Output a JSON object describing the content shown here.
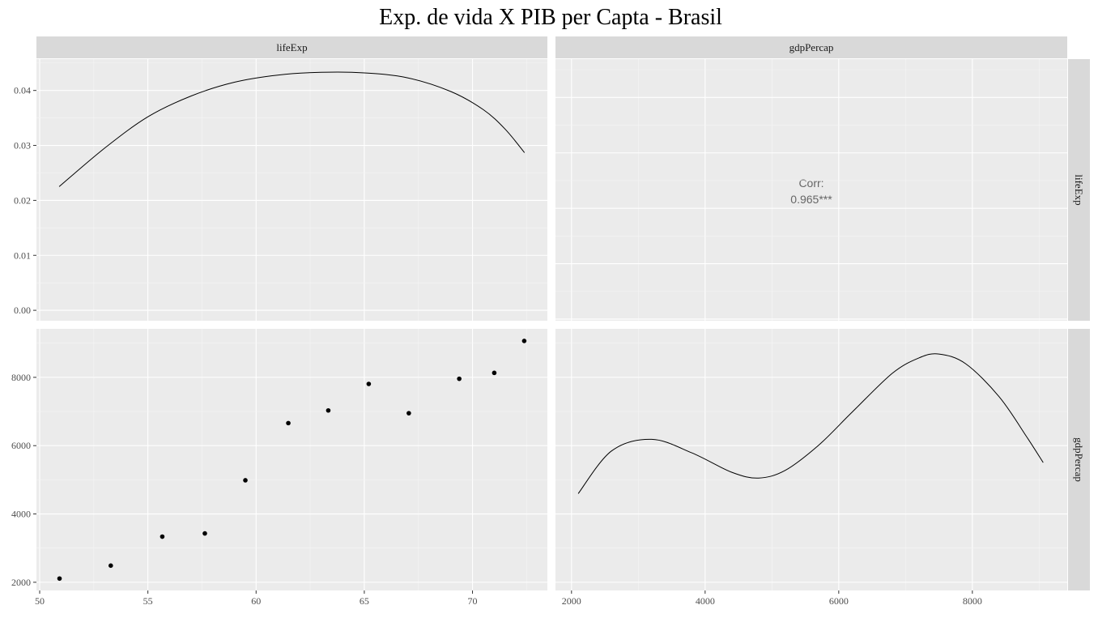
{
  "chart_data": {
    "type": "scatter-matrix",
    "title": "Exp. de vida X PIB per Capta - Brasil",
    "variables": [
      "lifeExp",
      "gdpPercap"
    ],
    "points": {
      "lifeExp": [
        50.917,
        53.285,
        55.665,
        57.632,
        59.504,
        61.489,
        63.336,
        65.205,
        67.057,
        69.388,
        71.006,
        72.39
      ],
      "gdpPercap": [
        2108.94,
        2487.37,
        3336.59,
        3429.86,
        4985.71,
        6660.12,
        7030.84,
        7807.1,
        6950.28,
        7957.98,
        8131.21,
        9065.8
      ]
    },
    "axes": {
      "lifeExp": {
        "lim": [
          49.85,
          73.46
        ],
        "ticks": [
          50,
          55,
          60,
          65,
          70
        ],
        "tick_labels": [
          "50",
          "55",
          "60",
          "65",
          "70"
        ]
      },
      "gdpPercap": {
        "lim": [
          1760,
          9420
        ],
        "ticks": [
          2000,
          4000,
          6000,
          8000
        ],
        "tick_labels": [
          "2000",
          "4000",
          "6000",
          "8000"
        ]
      },
      "density_y": {
        "lim": [
          -0.0019,
          0.0457
        ],
        "ticks": [
          0,
          0.01,
          0.02,
          0.03,
          0.04
        ],
        "tick_labels": [
          "0.00",
          "0.01",
          "0.02",
          "0.03",
          "0.04"
        ]
      }
    },
    "density_lifeExp": {
      "x": [
        50.9,
        53,
        55,
        57,
        59,
        61,
        63,
        65,
        67,
        69,
        70.5,
        71.5,
        72.4
      ],
      "y": [
        0.0225,
        0.0295,
        0.0352,
        0.039,
        0.0415,
        0.0428,
        0.0433,
        0.0432,
        0.0423,
        0.0398,
        0.0365,
        0.033,
        0.0287
      ]
    },
    "density_gdpPercap": {
      "x": [
        2100,
        2600,
        3200,
        3800,
        4400,
        4800,
        5200,
        5700,
        6200,
        6800,
        7200,
        7500,
        7900,
        8400,
        8800,
        9060
      ],
      "y": [
        0.5,
        0.72,
        0.78,
        0.71,
        0.61,
        0.58,
        0.62,
        0.75,
        0.92,
        1.12,
        1.2,
        1.22,
        1.17,
        1.0,
        0.8,
        0.66
      ]
    },
    "density_gdp_ylim": [
      0,
      1.35
    ],
    "correlation": {
      "label": "Corr:",
      "value": "0.965***"
    },
    "grid": true
  }
}
